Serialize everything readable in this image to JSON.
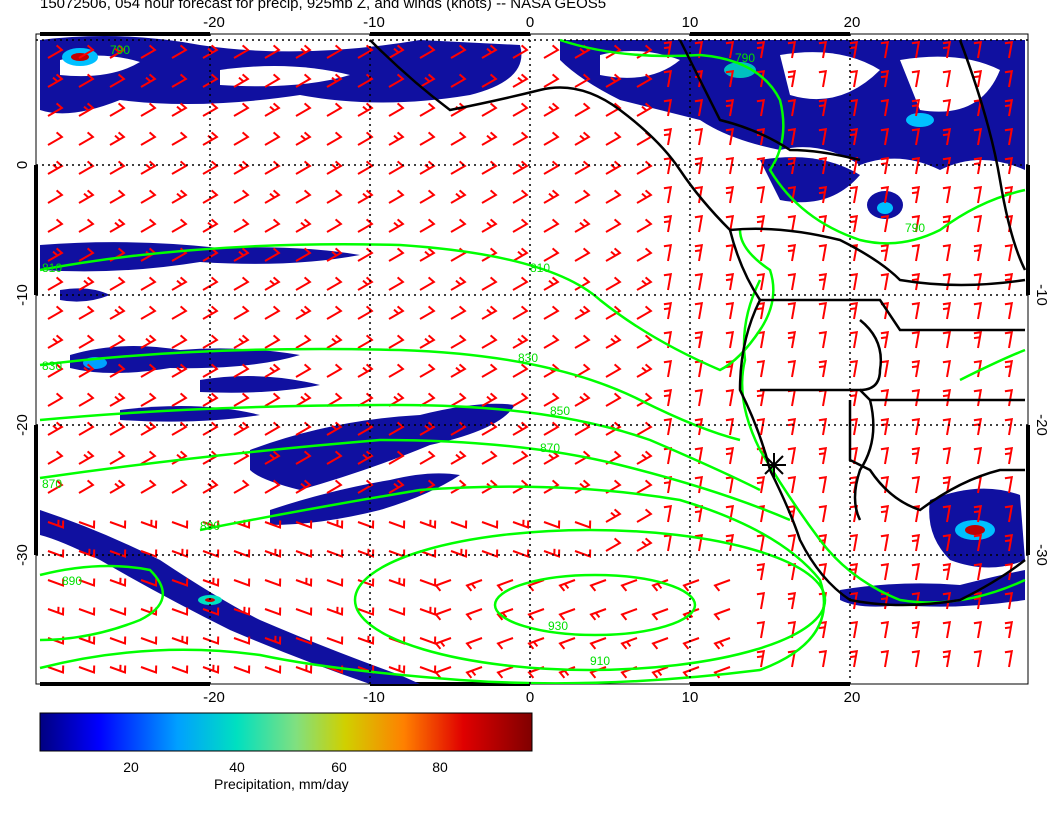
{
  "title": "15072506, 054 hour forecast for precip, 925mb Z, and winds (knots) -- NASA GEOS5",
  "map": {
    "lon_ticks": [
      "-20",
      "-10",
      "0",
      "10",
      "20"
    ],
    "lat_ticks_left": [
      "0",
      "-10",
      "-20",
      "-30"
    ],
    "lat_ticks_right": [
      "-10",
      "-20",
      "-30"
    ],
    "contour_labels": [
      "790",
      "790",
      "790",
      "810",
      "810",
      "830",
      "830",
      "850",
      "870",
      "870",
      "890",
      "890",
      "910",
      "930"
    ],
    "colors": {
      "wind_barbs": "#ff0000",
      "height_contours": "#00ff00",
      "coastline": "#000000",
      "grid": "#000000"
    },
    "marker_icon": "asterisk-marker"
  },
  "colorbar": {
    "ticks": [
      "20",
      "40",
      "60",
      "80"
    ],
    "label": "Precipitation, mm/day",
    "colors": [
      "#000080",
      "#0000ff",
      "#00a0ff",
      "#00e0c0",
      "#80e080",
      "#d0d000",
      "#ff8000",
      "#e00000",
      "#800000"
    ]
  }
}
